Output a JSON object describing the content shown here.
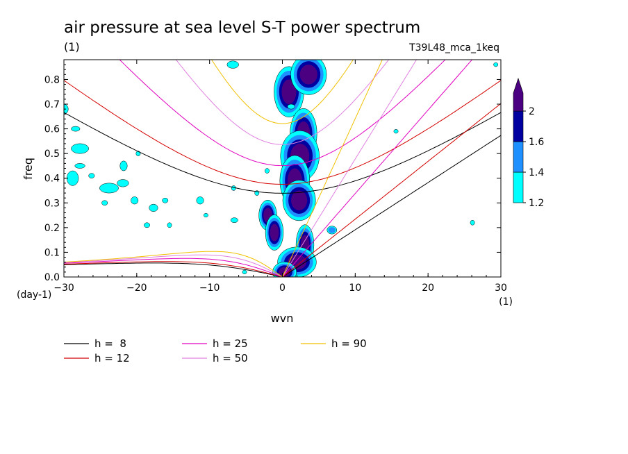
{
  "chart_data": {
    "type": "heatmap",
    "title": "air pressure at sea level S-T power spectrum",
    "title_unit": "(1)",
    "run_label": "T39L48_mca_1keq",
    "xlabel": "wvn",
    "xunit": "(1)",
    "ylabel": "freq",
    "yunit": "(day-1)",
    "xlim": [
      -30,
      30
    ],
    "ylim": [
      0,
      0.88
    ],
    "xticks": [
      -30,
      -20,
      -10,
      0,
      10,
      20,
      30
    ],
    "yticks": [
      0.0,
      0.1,
      0.2,
      0.3,
      0.4,
      0.5,
      0.6,
      0.7,
      0.8
    ],
    "colorbar": {
      "levels": [
        "1.2",
        "1.4",
        "1.6",
        "2"
      ],
      "colors": [
        "#00ffff",
        "#1e90ff",
        "#0000a0",
        "#4b0082"
      ]
    },
    "legend": [
      {
        "label": "h =  8",
        "h": 8,
        "color": "#000000"
      },
      {
        "label": "h = 12",
        "h": 12,
        "color": "#d40000"
      },
      {
        "label": "h = 25",
        "h": 25,
        "color": "#e000c0"
      },
      {
        "label": "h = 50",
        "h": 50,
        "color": "#e080e0"
      },
      {
        "label": "h = 90",
        "h": 90,
        "color": "#f0c000"
      }
    ],
    "contour_regions": [
      {
        "level": 2,
        "cx": 0.9,
        "cy": 0.75,
        "rx": 1.0,
        "ry": 0.05
      },
      {
        "level": 2,
        "cx": 3.6,
        "cy": 0.82,
        "rx": 1.2,
        "ry": 0.04
      },
      {
        "level": 2,
        "cx": 2.9,
        "cy": 0.58,
        "rx": 0.9,
        "ry": 0.05
      },
      {
        "level": 2,
        "cx": 2.4,
        "cy": 0.49,
        "rx": 1.3,
        "ry": 0.05
      },
      {
        "level": 2,
        "cx": 1.7,
        "cy": 0.39,
        "rx": 1.0,
        "ry": 0.05
      },
      {
        "level": 2,
        "cx": 2.3,
        "cy": 0.31,
        "rx": 1.1,
        "ry": 0.04
      },
      {
        "level": 2,
        "cx": -2.0,
        "cy": 0.25,
        "rx": 0.6,
        "ry": 0.03
      },
      {
        "level": 2,
        "cx": -1.1,
        "cy": 0.18,
        "rx": 0.6,
        "ry": 0.035
      },
      {
        "level": 2,
        "cx": 3.1,
        "cy": 0.13,
        "rx": 0.6,
        "ry": 0.04
      },
      {
        "level": 2,
        "cx": 2.0,
        "cy": 0.06,
        "rx": 1.3,
        "ry": 0.03
      },
      {
        "level": 2,
        "cx": 0.3,
        "cy": 0.02,
        "rx": 0.8,
        "ry": 0.02
      },
      {
        "level": 1.4,
        "cx": 6.8,
        "cy": 0.19,
        "rx": 0.5,
        "ry": 0.012
      },
      {
        "level": 1.2,
        "cx": -30,
        "cy": 0.68,
        "rx": 0.6,
        "ry": 0.02
      },
      {
        "level": 1.2,
        "cx": -28.4,
        "cy": 0.6,
        "rx": 0.6,
        "ry": 0.01
      },
      {
        "level": 1.2,
        "cx": -27.8,
        "cy": 0.52,
        "rx": 1.2,
        "ry": 0.02
      },
      {
        "level": 1.2,
        "cx": -27.8,
        "cy": 0.45,
        "rx": 0.7,
        "ry": 0.01
      },
      {
        "level": 1.2,
        "cx": -28.8,
        "cy": 0.4,
        "rx": 0.8,
        "ry": 0.03
      },
      {
        "level": 1.2,
        "cx": -26.2,
        "cy": 0.41,
        "rx": 0.4,
        "ry": 0.01
      },
      {
        "level": 1.2,
        "cx": -21.8,
        "cy": 0.45,
        "rx": 0.5,
        "ry": 0.02
      },
      {
        "level": 1.2,
        "cx": -23.8,
        "cy": 0.36,
        "rx": 1.3,
        "ry": 0.02
      },
      {
        "level": 1.2,
        "cx": -21.9,
        "cy": 0.38,
        "rx": 0.8,
        "ry": 0.015
      },
      {
        "level": 1.2,
        "cx": -20.3,
        "cy": 0.31,
        "rx": 0.5,
        "ry": 0.015
      },
      {
        "level": 1.2,
        "cx": -24.4,
        "cy": 0.3,
        "rx": 0.4,
        "ry": 0.01
      },
      {
        "level": 1.2,
        "cx": -19.8,
        "cy": 0.5,
        "rx": 0.3,
        "ry": 0.01
      },
      {
        "level": 1.2,
        "cx": -17.7,
        "cy": 0.28,
        "rx": 0.6,
        "ry": 0.015
      },
      {
        "level": 1.2,
        "cx": -15.5,
        "cy": 0.21,
        "rx": 0.3,
        "ry": 0.01
      },
      {
        "level": 1.2,
        "cx": -18.6,
        "cy": 0.21,
        "rx": 0.4,
        "ry": 0.01
      },
      {
        "level": 1.2,
        "cx": -16.1,
        "cy": 0.31,
        "rx": 0.4,
        "ry": 0.01
      },
      {
        "level": 1.2,
        "cx": -11.3,
        "cy": 0.31,
        "rx": 0.5,
        "ry": 0.015
      },
      {
        "level": 1.2,
        "cx": -6.6,
        "cy": 0.23,
        "rx": 0.5,
        "ry": 0.01
      },
      {
        "level": 1.2,
        "cx": -10.5,
        "cy": 0.25,
        "rx": 0.3,
        "ry": 0.008
      },
      {
        "level": 1.2,
        "cx": -6.7,
        "cy": 0.36,
        "rx": 0.3,
        "ry": 0.01
      },
      {
        "level": 1.2,
        "cx": -2.1,
        "cy": 0.43,
        "rx": 0.3,
        "ry": 0.01
      },
      {
        "level": 1.2,
        "cx": -5.2,
        "cy": 0.02,
        "rx": 0.3,
        "ry": 0.008
      },
      {
        "level": 1.2,
        "cx": -6.8,
        "cy": 0.86,
        "rx": 0.8,
        "ry": 0.015
      },
      {
        "level": 1.2,
        "cx": -3.5,
        "cy": 0.34,
        "rx": 0.3,
        "ry": 0.01
      },
      {
        "level": 1.2,
        "cx": 15.6,
        "cy": 0.59,
        "rx": 0.3,
        "ry": 0.008
      },
      {
        "level": 1.2,
        "cx": 26.1,
        "cy": 0.22,
        "rx": 0.3,
        "ry": 0.01
      },
      {
        "level": 1.2,
        "cx": 29.3,
        "cy": 0.86,
        "rx": 0.3,
        "ry": 0.008
      },
      {
        "level": 1.2,
        "cx": 1.2,
        "cy": 0.69,
        "rx": 0.5,
        "ry": 0.01
      }
    ]
  }
}
